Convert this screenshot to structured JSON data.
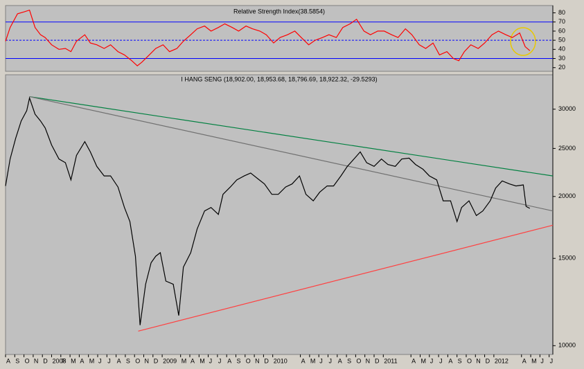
{
  "chart_data": [
    {
      "type": "line",
      "title": "Relative Strength Index(38.5854)",
      "x": [
        0,
        0.5,
        1.3,
        2.0,
        2.6,
        3.2,
        3.8,
        4.3,
        5.0,
        5.8,
        6.5,
        7.1,
        7.7,
        8.6,
        9.2,
        9.9,
        10.7,
        11.4,
        12.2,
        12.9,
        13.7,
        14.3,
        14.8,
        15.6,
        16.3,
        17.1,
        17.8,
        18.6,
        19.3,
        20.1,
        20.8,
        21.6,
        22.3,
        23.1,
        23.8,
        24.6,
        25.3,
        26.1,
        26.8,
        27.6,
        28.3,
        29.1,
        29.8,
        30.6,
        31.4,
        32.1,
        32.9,
        33.6,
        34.4,
        35.1,
        35.9,
        36.6,
        37.4,
        38.1,
        38.9,
        39.6,
        40.4,
        41.1,
        41.9,
        42.6,
        43.4,
        44.1,
        44.9,
        45.6,
        46.4,
        47.1,
        47.9,
        48.6,
        49.2,
        49.8,
        50.5,
        51.3,
        52.0,
        52.8,
        53.5,
        54.3,
        55.0,
        55.8,
        56.4,
        56.9
      ],
      "values": [
        48.9,
        64,
        79,
        81,
        83,
        64,
        56,
        53,
        45,
        40,
        41,
        37.5,
        49,
        56,
        47,
        45,
        41,
        45,
        37.5,
        34,
        27.6,
        22,
        26,
        34,
        41,
        45,
        37.5,
        41,
        49,
        56,
        62.5,
        65.6,
        60,
        64,
        68,
        64,
        60,
        65.6,
        62.5,
        60,
        56,
        47,
        53,
        56,
        60,
        53,
        45,
        50,
        53,
        56,
        53,
        64,
        68,
        73,
        60,
        56,
        60,
        60,
        56,
        53,
        62.5,
        56,
        45,
        41,
        47,
        34,
        37.5,
        30,
        27.6,
        37.5,
        45,
        41,
        47,
        56,
        60,
        56,
        53,
        58,
        43,
        38.5854
      ],
      "color": "#ff0000",
      "levels": [
        70,
        50,
        30
      ],
      "level_color": "#0000ff",
      "xlim": [
        0,
        59.4
      ],
      "ylim": [
        16,
        88
      ],
      "yticks": [
        20,
        30,
        40,
        50,
        60,
        70,
        80
      ]
    },
    {
      "type": "line",
      "log_scale": true,
      "title": "I HANG SENG (18,902.00, 18,953.68, 18,796.69, 18,922.32, -29.5293)",
      "x": [
        0,
        0.5,
        1.1,
        1.7,
        2.3,
        2.6,
        3.2,
        3.8,
        4.3,
        5.0,
        5.8,
        6.5,
        7.1,
        7.7,
        8.6,
        9.2,
        9.9,
        10.7,
        11.4,
        12.2,
        12.9,
        13.5,
        14.1,
        14.6,
        15.2,
        15.8,
        16.3,
        16.8,
        17.4,
        18.2,
        18.8,
        19.3,
        20.1,
        20.8,
        21.6,
        22.3,
        23.1,
        23.6,
        24.4,
        25.1,
        25.9,
        26.6,
        27.4,
        28.1,
        28.9,
        29.6,
        30.4,
        31.1,
        31.9,
        32.6,
        33.4,
        34.1,
        34.9,
        35.6,
        36.4,
        37.1,
        37.9,
        38.5,
        39.2,
        40.0,
        40.8,
        41.5,
        42.3,
        43.0,
        43.8,
        44.5,
        45.3,
        46.0,
        46.8,
        47.5,
        48.3,
        49.0,
        49.5,
        50.3,
        51.1,
        51.8,
        52.6,
        53.2,
        53.9,
        54.7,
        55.4,
        56.2,
        56.5,
        56.9
      ],
      "values": [
        21000,
        23800,
        26200,
        28400,
        29800,
        31600,
        29300,
        28400,
        27500,
        25400,
        23800,
        23400,
        21600,
        24200,
        25800,
        24600,
        23000,
        22000,
        22000,
        20900,
        19000,
        17800,
        15150,
        11000,
        13300,
        14700,
        15150,
        15400,
        13500,
        13300,
        11500,
        14400,
        15400,
        17200,
        18700,
        19000,
        18400,
        20200,
        20900,
        21600,
        22000,
        22300,
        21700,
        21200,
        20200,
        20200,
        20900,
        21200,
        22000,
        20200,
        19600,
        20400,
        21000,
        21000,
        22000,
        23000,
        23900,
        24600,
        23400,
        23000,
        23800,
        23200,
        23000,
        23800,
        23900,
        23200,
        22700,
        22000,
        21600,
        19600,
        19600,
        17800,
        19000,
        19600,
        18300,
        18700,
        19600,
        20800,
        21500,
        21200,
        21000,
        21100,
        19100,
        18922
      ],
      "color": "#000000",
      "trendlines": [
        {
          "color": "#008040",
          "x": [
            2.6,
            59.4
          ],
          "values": [
            31800,
            22000
          ]
        },
        {
          "color": "#707070",
          "x": [
            2.6,
            59.4
          ],
          "values": [
            31800,
            18700
          ]
        },
        {
          "color": "#ff4040",
          "x": [
            14.4,
            59.4
          ],
          "values": [
            10700,
            17500
          ]
        }
      ],
      "xlim": [
        0,
        59.4
      ],
      "ylim": [
        9600,
        35200
      ],
      "yticks": [
        10000,
        15000,
        20000,
        25000,
        30000
      ],
      "xticks": [
        {
          "value": 0,
          "label": "A"
        },
        {
          "value": 1,
          "label": "S"
        },
        {
          "value": 2,
          "label": "O"
        },
        {
          "value": 3,
          "label": "N"
        },
        {
          "value": 4,
          "label": "D"
        },
        {
          "value": 5,
          "label": "2008"
        },
        {
          "value": 6,
          "label": "F"
        },
        {
          "value": 7,
          "label": "M"
        },
        {
          "value": 8,
          "label": "A"
        },
        {
          "value": 9,
          "label": "M"
        },
        {
          "value": 10,
          "label": "J"
        },
        {
          "value": 11,
          "label": "J"
        },
        {
          "value": 12,
          "label": "A"
        },
        {
          "value": 13,
          "label": "S"
        },
        {
          "value": 14,
          "label": "O"
        },
        {
          "value": 15,
          "label": "N"
        },
        {
          "value": 16,
          "label": "D"
        },
        {
          "value": 17,
          "label": "2009"
        },
        {
          "value": 19,
          "label": "M"
        },
        {
          "value": 20,
          "label": "A"
        },
        {
          "value": 21,
          "label": "M"
        },
        {
          "value": 22,
          "label": "J"
        },
        {
          "value": 23,
          "label": "J"
        },
        {
          "value": 24,
          "label": "A"
        },
        {
          "value": 25,
          "label": "S"
        },
        {
          "value": 26,
          "label": "O"
        },
        {
          "value": 27,
          "label": "N"
        },
        {
          "value": 28,
          "label": "D"
        },
        {
          "value": 29,
          "label": "2010"
        },
        {
          "value": 32,
          "label": "A"
        },
        {
          "value": 33,
          "label": "M"
        },
        {
          "value": 34,
          "label": "J"
        },
        {
          "value": 35,
          "label": "J"
        },
        {
          "value": 36,
          "label": "A"
        },
        {
          "value": 37,
          "label": "S"
        },
        {
          "value": 38,
          "label": "O"
        },
        {
          "value": 39,
          "label": "N"
        },
        {
          "value": 40,
          "label": "D"
        },
        {
          "value": 41,
          "label": "2011"
        },
        {
          "value": 44,
          "label": "A"
        },
        {
          "value": 45,
          "label": "M"
        },
        {
          "value": 46,
          "label": "J"
        },
        {
          "value": 47,
          "label": "J"
        },
        {
          "value": 48,
          "label": "A"
        },
        {
          "value": 49,
          "label": "S"
        },
        {
          "value": 50,
          "label": "O"
        },
        {
          "value": 51,
          "label": "N"
        },
        {
          "value": 52,
          "label": "D"
        },
        {
          "value": 53,
          "label": "2012"
        },
        {
          "value": 56,
          "label": "A"
        },
        {
          "value": 57,
          "label": "M"
        },
        {
          "value": 58,
          "label": "J"
        },
        {
          "value": 59,
          "label": "J"
        }
      ]
    }
  ]
}
